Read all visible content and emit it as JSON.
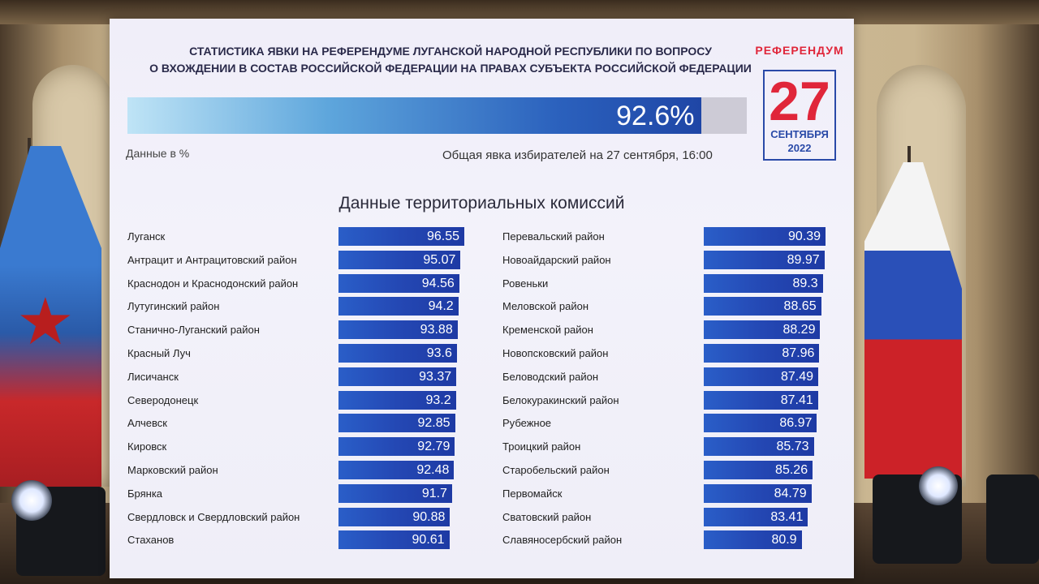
{
  "title_line1": "Статистика явки на референдуме Луганской Народной Республики по вопросу",
  "title_line2": "о вхождении в состав Российской Федерации на правах субъекта Российской Федерации",
  "turnout": {
    "value": 92.6,
    "label": "92.6%",
    "units": "Данные в %",
    "caption": "Общая явка избирателей на 27 сентября, 16:00",
    "color": "#2b61bd"
  },
  "logo": {
    "word": "РЕФЕРЕНДУМ",
    "day": "27",
    "month": "СЕНТЯБРЯ",
    "year": "2022",
    "red": "#e0263a",
    "blue": "#2a4aa8"
  },
  "section_title": "Данные территориальных комиссий",
  "chart_data": {
    "type": "bar",
    "title": "Данные территориальных комиссий",
    "xlabel": "",
    "ylabel": "",
    "units": "%",
    "columns": [
      {
        "categories": [
          "Луганск",
          "Антрацит и Антрацитовский район",
          "Краснодон и Краснодонский район",
          "Лутугинский район",
          "Станично-Луганский район",
          "Красный Луч",
          "Лисичанск",
          "Северодонецк",
          "Алчевск",
          "Кировск",
          "Марковский район",
          "Брянка",
          "Свердловск и Свердловский район",
          "Стаханов"
        ],
        "values": [
          96.55,
          95.07,
          94.56,
          94.2,
          93.88,
          93.6,
          93.37,
          93.2,
          92.85,
          92.79,
          92.48,
          91.7,
          90.88,
          90.61
        ],
        "labels": [
          "96.55",
          "95.07",
          "94.56",
          "94.2",
          "93.88",
          "93.6",
          "93.37",
          "93.2",
          "92.85",
          "92.79",
          "92.48",
          "91.7",
          "90.88",
          "90.61"
        ]
      },
      {
        "categories": [
          "Перевальский район",
          "Новоайдарский район",
          "Ровеньки",
          "Меловской район",
          "Кременской район",
          "Новопсковский район",
          "Беловодский район",
          "Белокуракинский район",
          "Рубежное",
          "Троицкий район",
          "Старобельский район",
          "Первомайск",
          "Сватовский район",
          "Славяносербский район"
        ],
        "values": [
          90.39,
          89.97,
          89.3,
          88.65,
          88.29,
          87.96,
          87.49,
          87.41,
          86.97,
          85.73,
          85.26,
          84.79,
          83.41,
          80.9
        ],
        "labels": [
          "90.39",
          "89.97",
          "89.3",
          "88.65",
          "88.29",
          "87.96",
          "87.49",
          "87.41",
          "86.97",
          "85.73",
          "85.26",
          "84.79",
          "83.41",
          "80.9"
        ]
      }
    ],
    "bar_color": "#2448b4"
  }
}
